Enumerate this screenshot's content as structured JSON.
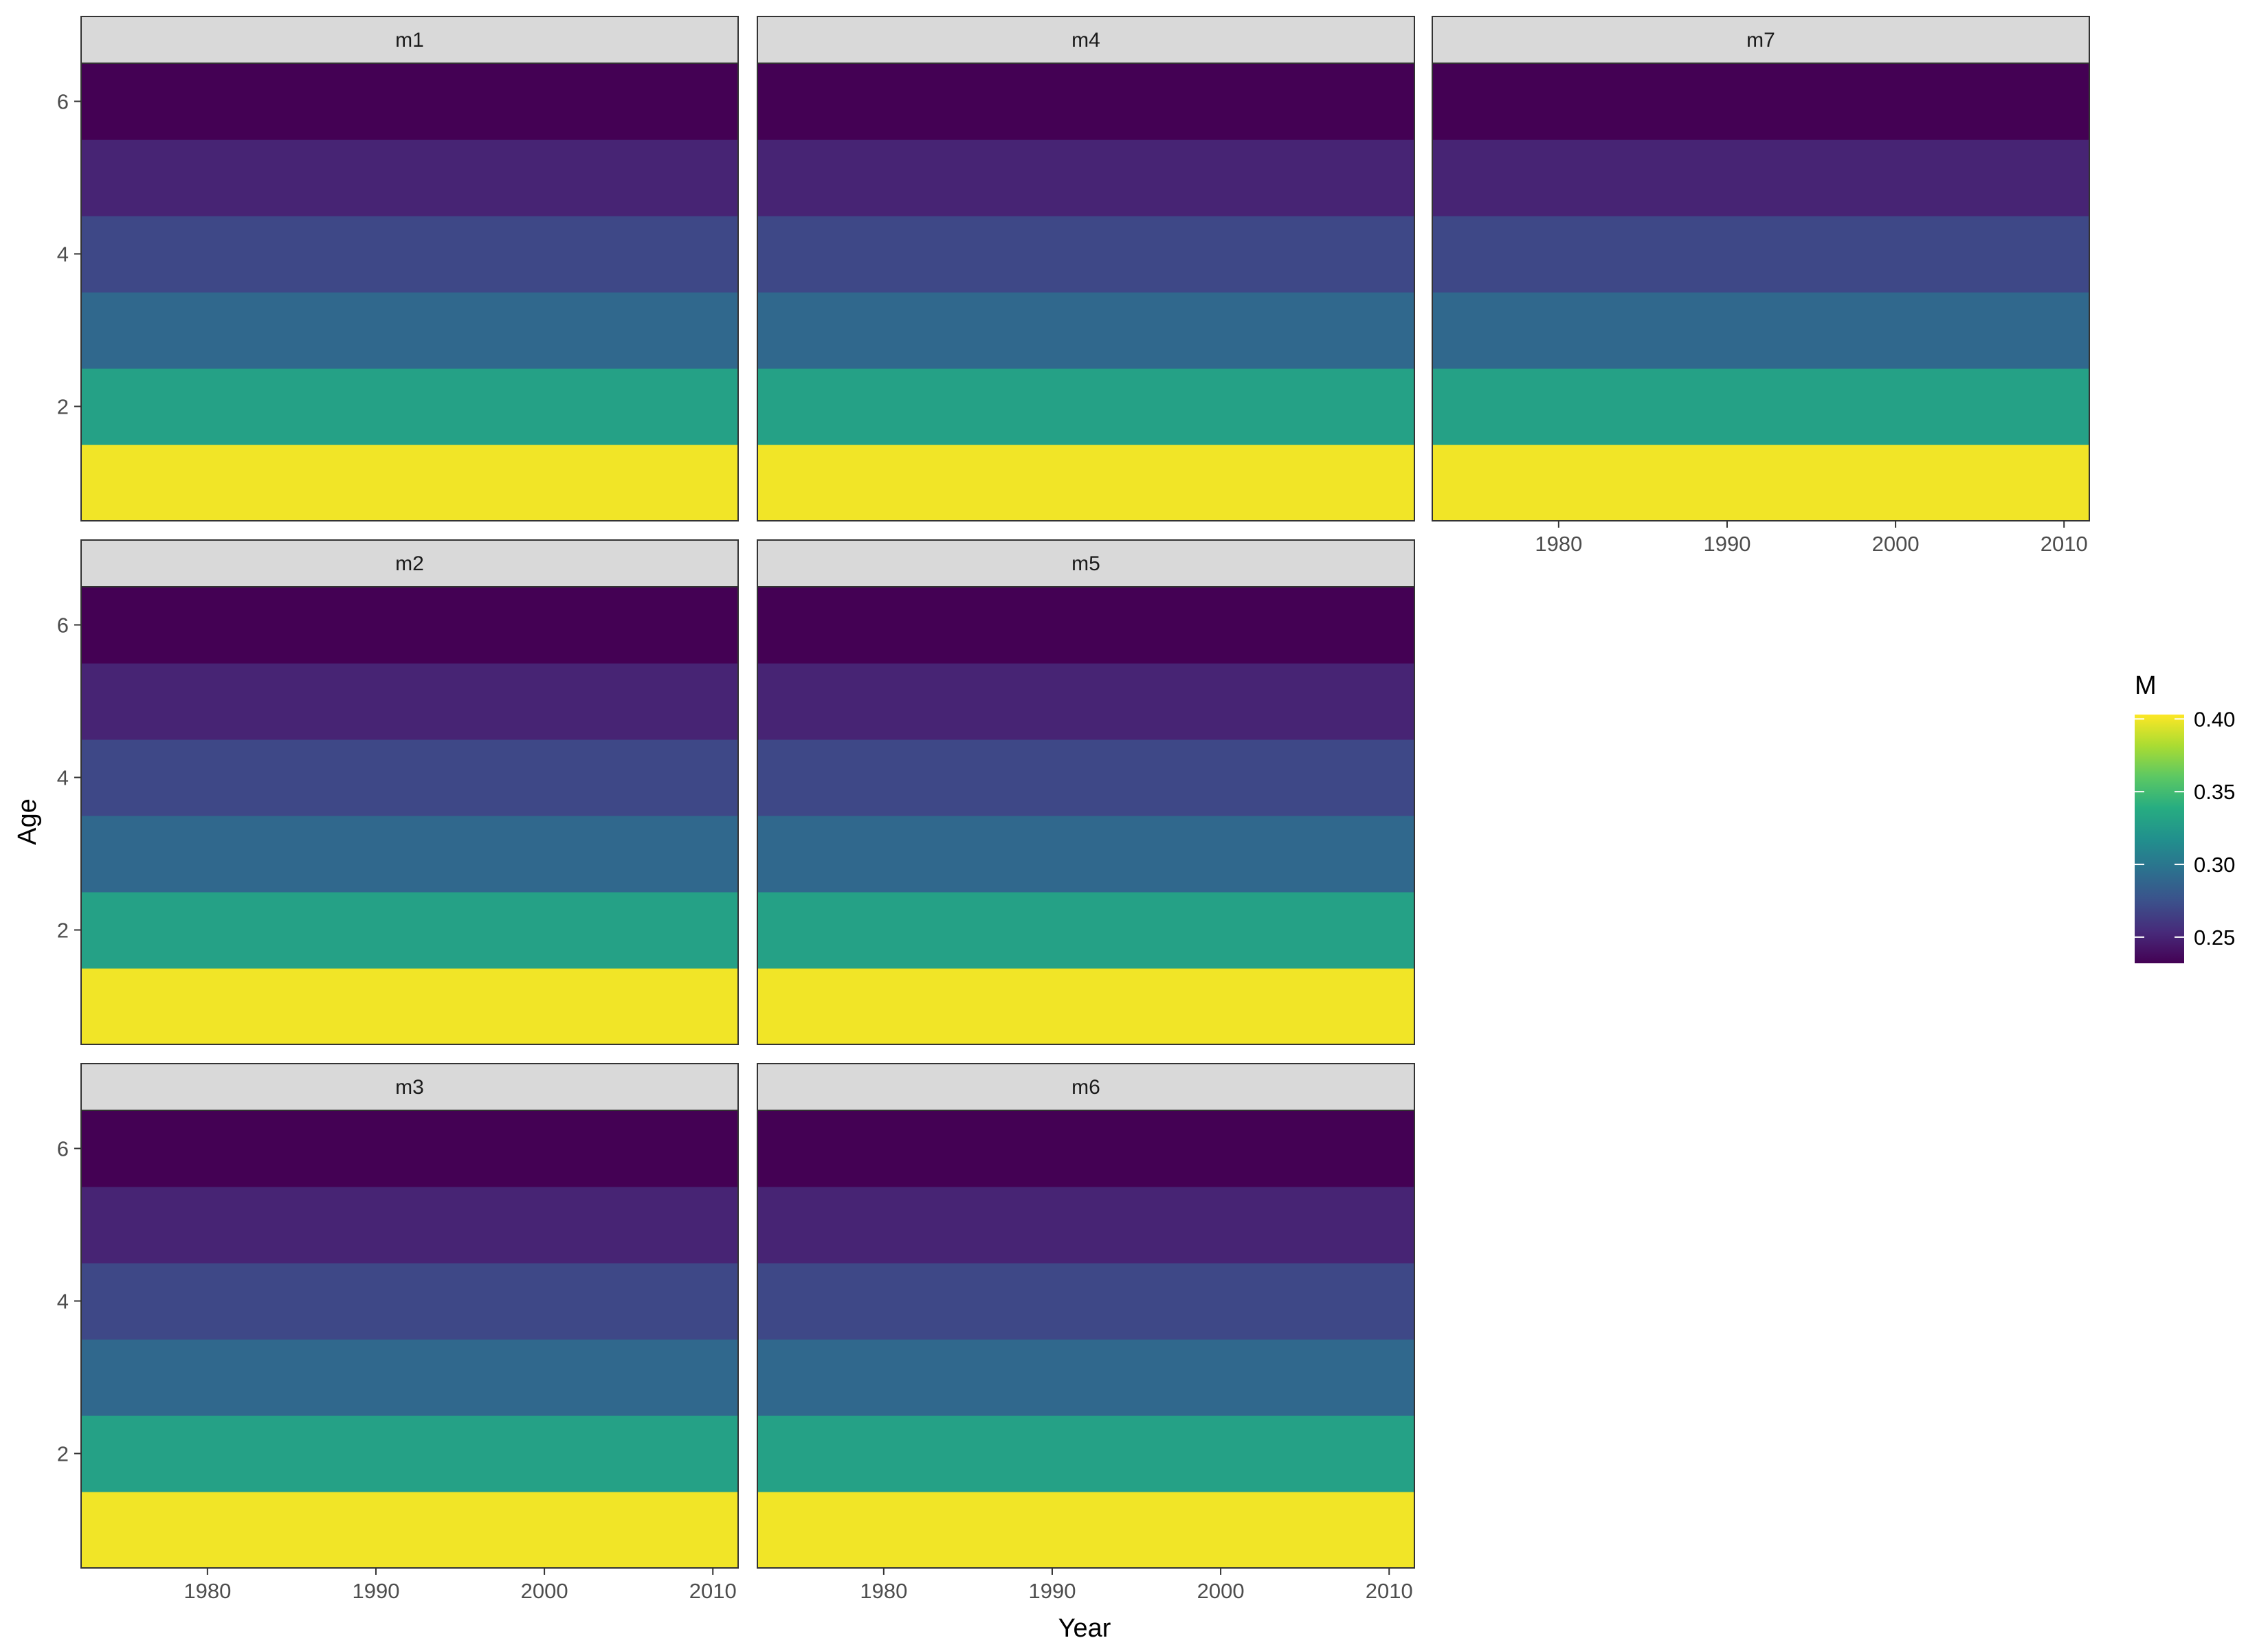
{
  "chart_data": {
    "type": "heatmap",
    "xlabel": "Year",
    "ylabel": "Age",
    "x_range": [
      1972.5,
      2011.5
    ],
    "y_range": [
      0.5,
      6.5
    ],
    "x_ticks": [
      "1980",
      "1990",
      "2000",
      "2010"
    ],
    "y_ticks": [
      "2",
      "4",
      "6"
    ],
    "ages": [
      1,
      2,
      3,
      4,
      5,
      6
    ],
    "legend": {
      "title": "M",
      "placement": "right",
      "range": [
        0.232,
        0.403
      ],
      "ticks": [
        "0.25",
        "0.30",
        "0.35",
        "0.40"
      ],
      "palette": [
        "#440154",
        "#472A7A",
        "#3B518B",
        "#2C718E",
        "#21908D",
        "#27AD81",
        "#5CC863",
        "#AADC32",
        "#FDE725"
      ]
    },
    "facets": [
      {
        "label": "m1",
        "M_by_age": [
          0.4,
          0.33,
          0.29,
          0.27,
          0.25,
          0.232
        ]
      },
      {
        "label": "m4",
        "M_by_age": [
          0.4,
          0.33,
          0.29,
          0.27,
          0.25,
          0.232
        ]
      },
      {
        "label": "m7",
        "M_by_age": [
          0.4,
          0.33,
          0.29,
          0.27,
          0.25,
          0.232
        ]
      },
      {
        "label": "m2",
        "M_by_age": [
          0.4,
          0.33,
          0.29,
          0.27,
          0.25,
          0.232
        ]
      },
      {
        "label": "m5",
        "M_by_age": [
          0.4,
          0.33,
          0.29,
          0.27,
          0.25,
          0.232
        ]
      },
      {
        "label": "m3",
        "M_by_age": [
          0.4,
          0.33,
          0.29,
          0.27,
          0.25,
          0.232
        ]
      },
      {
        "label": "m6",
        "M_by_age": [
          0.4,
          0.33,
          0.29,
          0.27,
          0.25,
          0.232
        ]
      }
    ]
  }
}
